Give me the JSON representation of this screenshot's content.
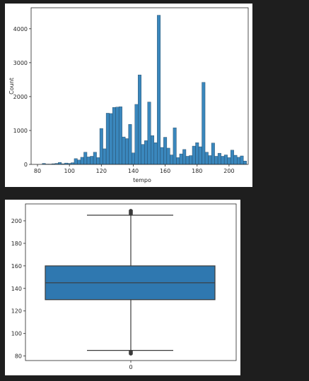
{
  "chart_data": [
    {
      "type": "bar",
      "title": "",
      "xlabel": "tempo",
      "ylabel": "Count",
      "xlim": [
        76,
        212
      ],
      "ylim": [
        0,
        4620
      ],
      "bar_color": "#3a87bd",
      "edge_color": "#1f3d55",
      "x_ticks": [
        80,
        100,
        120,
        140,
        160,
        180,
        200
      ],
      "y_ticks": [
        0,
        1000,
        2000,
        3000,
        4000
      ],
      "bins": [
        {
          "x": 84,
          "count": 30
        },
        {
          "x": 86,
          "count": 10
        },
        {
          "x": 88,
          "count": 10
        },
        {
          "x": 90,
          "count": 20
        },
        {
          "x": 92,
          "count": 30
        },
        {
          "x": 94,
          "count": 60
        },
        {
          "x": 96,
          "count": 20
        },
        {
          "x": 98,
          "count": 40
        },
        {
          "x": 100,
          "count": 30
        },
        {
          "x": 102,
          "count": 50
        },
        {
          "x": 104,
          "count": 170
        },
        {
          "x": 106,
          "count": 130
        },
        {
          "x": 108,
          "count": 210
        },
        {
          "x": 110,
          "count": 360
        },
        {
          "x": 112,
          "count": 220
        },
        {
          "x": 114,
          "count": 240
        },
        {
          "x": 116,
          "count": 360
        },
        {
          "x": 118,
          "count": 200
        },
        {
          "x": 120,
          "count": 1060
        },
        {
          "x": 122,
          "count": 460
        },
        {
          "x": 124,
          "count": 1510
        },
        {
          "x": 126,
          "count": 1500
        },
        {
          "x": 128,
          "count": 1680
        },
        {
          "x": 130,
          "count": 1690
        },
        {
          "x": 132,
          "count": 1700
        },
        {
          "x": 134,
          "count": 810
        },
        {
          "x": 136,
          "count": 760
        },
        {
          "x": 138,
          "count": 1180
        },
        {
          "x": 140,
          "count": 340
        },
        {
          "x": 142,
          "count": 1770
        },
        {
          "x": 144,
          "count": 2640
        },
        {
          "x": 146,
          "count": 590
        },
        {
          "x": 148,
          "count": 700
        },
        {
          "x": 150,
          "count": 1840
        },
        {
          "x": 152,
          "count": 850
        },
        {
          "x": 154,
          "count": 640
        },
        {
          "x": 156,
          "count": 4400
        },
        {
          "x": 158,
          "count": 500
        },
        {
          "x": 160,
          "count": 800
        },
        {
          "x": 162,
          "count": 480
        },
        {
          "x": 164,
          "count": 280
        },
        {
          "x": 166,
          "count": 1080
        },
        {
          "x": 168,
          "count": 200
        },
        {
          "x": 170,
          "count": 310
        },
        {
          "x": 172,
          "count": 440
        },
        {
          "x": 174,
          "count": 240
        },
        {
          "x": 176,
          "count": 260
        },
        {
          "x": 178,
          "count": 540
        },
        {
          "x": 180,
          "count": 640
        },
        {
          "x": 182,
          "count": 520
        },
        {
          "x": 184,
          "count": 2420
        },
        {
          "x": 186,
          "count": 360
        },
        {
          "x": 188,
          "count": 260
        },
        {
          "x": 190,
          "count": 630
        },
        {
          "x": 192,
          "count": 240
        },
        {
          "x": 194,
          "count": 330
        },
        {
          "x": 196,
          "count": 240
        },
        {
          "x": 198,
          "count": 280
        },
        {
          "x": 200,
          "count": 200
        },
        {
          "x": 202,
          "count": 420
        },
        {
          "x": 204,
          "count": 270
        },
        {
          "x": 206,
          "count": 210
        },
        {
          "x": 208,
          "count": 250
        },
        {
          "x": 210,
          "count": 100
        }
      ]
    },
    {
      "type": "box",
      "title": "",
      "xlabel": "",
      "ylabel": "",
      "category": "0",
      "ylim": [
        76,
        215
      ],
      "y_ticks": [
        80,
        100,
        120,
        140,
        160,
        180,
        200
      ],
      "box_color": "#2f78b0",
      "line_color": "#3b3b3b",
      "whisker_low": 85,
      "q1": 130,
      "median": 145,
      "q3": 160,
      "whisker_high": 205,
      "outliers_low": [
        82,
        83,
        84
      ],
      "outliers_high": [
        206,
        207,
        208,
        209
      ]
    }
  ]
}
